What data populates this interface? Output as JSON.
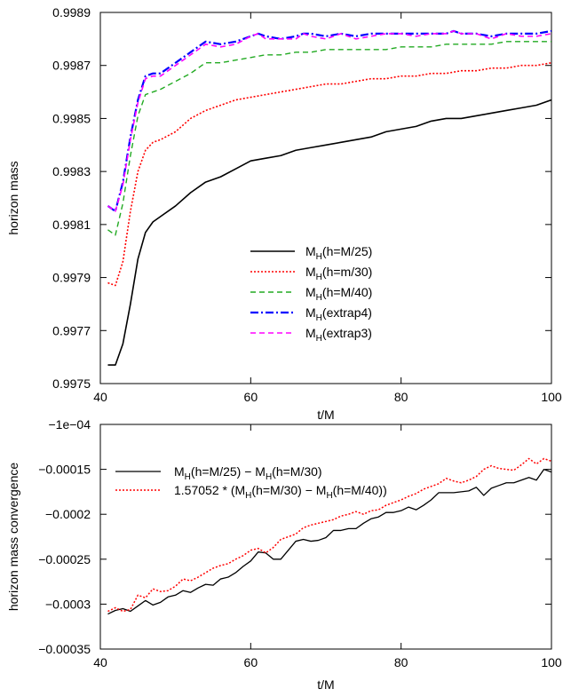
{
  "chart_data": [
    {
      "type": "line",
      "xlabel": "t/M",
      "ylabel": "horizon mass",
      "xlim": [
        40,
        100
      ],
      "ylim": [
        0.9975,
        0.9989
      ],
      "xticks": [
        {
          "v": 40,
          "label": "40"
        },
        {
          "v": 60,
          "label": "60"
        },
        {
          "v": 80,
          "label": "80"
        },
        {
          "v": 100,
          "label": "100"
        }
      ],
      "yticks": [
        {
          "v": 0.9975,
          "label": "0.9975"
        },
        {
          "v": 0.9977,
          "label": "0.9977"
        },
        {
          "v": 0.9979,
          "label": "0.9979"
        },
        {
          "v": 0.9981,
          "label": "0.9981"
        },
        {
          "v": 0.9983,
          "label": "0.9983"
        },
        {
          "v": 0.9985,
          "label": "0.9985"
        },
        {
          "v": 0.9987,
          "label": "0.9987"
        },
        {
          "v": 0.9989,
          "label": "0.9989"
        }
      ],
      "grid": false,
      "legend_position": "center-right",
      "series": [
        {
          "name_main": "M",
          "name_sub": "H",
          "name_rest": "(h=M/25)",
          "color": "#000000",
          "dash": "solid",
          "width": 1.6,
          "x": [
            41,
            42,
            43,
            44,
            45,
            46,
            47,
            48,
            50,
            52,
            54,
            56,
            58,
            60,
            62,
            64,
            66,
            68,
            70,
            72,
            74,
            76,
            78,
            80,
            82,
            84,
            86,
            88,
            90,
            92,
            94,
            96,
            98,
            100
          ],
          "y": [
            0.99757,
            0.99757,
            0.99765,
            0.9978,
            0.99797,
            0.99807,
            0.99811,
            0.99813,
            0.99817,
            0.99822,
            0.99826,
            0.99828,
            0.99831,
            0.99834,
            0.99835,
            0.99836,
            0.99838,
            0.99839,
            0.9984,
            0.99841,
            0.99842,
            0.99843,
            0.99845,
            0.99846,
            0.99847,
            0.99849,
            0.9985,
            0.9985,
            0.99851,
            0.99852,
            0.99853,
            0.99854,
            0.99855,
            0.99857
          ]
        },
        {
          "name_main": "M",
          "name_sub": "H",
          "name_rest": "(h=m/30)",
          "color": "#ff0000",
          "dash": "dotted",
          "width": 1.6,
          "x": [
            41,
            42,
            43,
            44,
            45,
            46,
            47,
            48,
            50,
            52,
            54,
            56,
            58,
            60,
            62,
            64,
            66,
            68,
            70,
            72,
            74,
            76,
            78,
            80,
            82,
            84,
            86,
            88,
            90,
            92,
            94,
            96,
            98,
            100
          ],
          "y": [
            0.99788,
            0.99787,
            0.99796,
            0.99815,
            0.9983,
            0.99838,
            0.99841,
            0.99842,
            0.99845,
            0.9985,
            0.99853,
            0.99855,
            0.99857,
            0.99858,
            0.99859,
            0.9986,
            0.99861,
            0.99862,
            0.99863,
            0.99863,
            0.99864,
            0.99865,
            0.99865,
            0.99866,
            0.99866,
            0.99867,
            0.99867,
            0.99868,
            0.99868,
            0.99869,
            0.99869,
            0.9987,
            0.9987,
            0.99871
          ]
        },
        {
          "name_main": "M",
          "name_sub": "H",
          "name_rest": "(h=M/40)",
          "color": "#22aa22",
          "dash": "dashed",
          "width": 1.4,
          "x": [
            41,
            42,
            43,
            44,
            45,
            46,
            47,
            48,
            50,
            52,
            54,
            56,
            58,
            60,
            62,
            64,
            66,
            68,
            70,
            72,
            74,
            76,
            78,
            80,
            82,
            84,
            86,
            88,
            90,
            92,
            94,
            96,
            98,
            100
          ],
          "y": [
            0.99808,
            0.99806,
            0.99818,
            0.99836,
            0.99851,
            0.99859,
            0.9986,
            0.99861,
            0.99864,
            0.99867,
            0.99871,
            0.99871,
            0.99872,
            0.99873,
            0.99874,
            0.99874,
            0.99875,
            0.99875,
            0.99876,
            0.99876,
            0.99876,
            0.99876,
            0.99876,
            0.99877,
            0.99877,
            0.99877,
            0.99878,
            0.99878,
            0.99878,
            0.99878,
            0.99879,
            0.99879,
            0.99879,
            0.99879
          ]
        },
        {
          "name_main": "M",
          "name_sub": "H",
          "name_rest": "(extrap4)",
          "color": "#0000ff",
          "dash": "dashdot",
          "width": 2.2,
          "x": [
            41,
            42,
            43,
            44,
            45,
            46,
            47,
            48,
            50,
            52,
            54,
            56,
            58,
            60,
            61,
            62,
            64,
            66,
            67,
            68,
            70,
            72,
            74,
            76,
            78,
            80,
            82,
            84,
            86,
            87,
            88,
            90,
            92,
            94,
            96,
            98,
            100
          ],
          "y": [
            0.99817,
            0.99815,
            0.99826,
            0.99843,
            0.99857,
            0.99866,
            0.99867,
            0.99867,
            0.99871,
            0.99875,
            0.99879,
            0.99878,
            0.99879,
            0.99881,
            0.99882,
            0.99881,
            0.9988,
            0.99881,
            0.99882,
            0.99882,
            0.99881,
            0.99882,
            0.99881,
            0.99882,
            0.99882,
            0.99882,
            0.99882,
            0.99882,
            0.99882,
            0.99883,
            0.99882,
            0.99882,
            0.99881,
            0.99882,
            0.99882,
            0.99882,
            0.99883
          ]
        },
        {
          "name_main": "M",
          "name_sub": "H",
          "name_rest": "(extrap3)",
          "color": "#ff00ff",
          "dash": "dashed",
          "width": 1.6,
          "x": [
            41,
            42,
            43,
            44,
            45,
            46,
            47,
            48,
            50,
            52,
            54,
            56,
            58,
            60,
            61,
            62,
            64,
            66,
            67,
            68,
            70,
            72,
            74,
            76,
            78,
            80,
            82,
            84,
            86,
            87,
            88,
            90,
            92,
            94,
            96,
            98,
            100
          ],
          "y": [
            0.99817,
            0.99815,
            0.99825,
            0.99842,
            0.99856,
            0.99865,
            0.99866,
            0.99866,
            0.9987,
            0.99874,
            0.99878,
            0.99877,
            0.99878,
            0.99881,
            0.99882,
            0.9988,
            0.9988,
            0.9988,
            0.99882,
            0.99881,
            0.9988,
            0.99882,
            0.9988,
            0.99881,
            0.99882,
            0.99882,
            0.99881,
            0.99882,
            0.99882,
            0.99883,
            0.99882,
            0.99882,
            0.9988,
            0.99882,
            0.99881,
            0.99881,
            0.99882
          ]
        }
      ]
    },
    {
      "type": "line",
      "xlabel": "t/M",
      "ylabel": "horizon mass convergence",
      "xlim": [
        40,
        100
      ],
      "ylim": [
        -0.00035,
        -0.0001
      ],
      "xticks": [
        {
          "v": 40,
          "label": "40"
        },
        {
          "v": 60,
          "label": "60"
        },
        {
          "v": 80,
          "label": "80"
        },
        {
          "v": 100,
          "label": "100"
        }
      ],
      "yticks": [
        {
          "v": -0.0001,
          "label": "−1e−04"
        },
        {
          "v": -0.00015,
          "label": "−0.00015"
        },
        {
          "v": -0.0002,
          "label": "−0.0002"
        },
        {
          "v": -0.00025,
          "label": "−0.00025"
        },
        {
          "v": -0.0003,
          "label": "−0.0003"
        },
        {
          "v": -0.00035,
          "label": "−0.00035"
        }
      ],
      "grid": false,
      "legend_position": "top-left",
      "series": [
        {
          "label_parts": [
            {
              "t": "M"
            },
            {
              "t": "H",
              "sub": true
            },
            {
              "t": "(h=M/25) − M"
            },
            {
              "t": "H",
              "sub": true
            },
            {
              "t": "(h=M/30)"
            }
          ],
          "color": "#000000",
          "dash": "solid",
          "width": 1.3,
          "x": [
            41,
            42,
            43,
            44,
            45,
            46,
            47,
            48,
            49,
            50,
            51,
            52,
            53,
            54,
            55,
            56,
            57,
            58,
            59,
            60,
            61,
            62,
            63,
            64,
            65,
            66,
            67,
            68,
            69,
            70,
            71,
            72,
            73,
            74,
            75,
            76,
            77,
            78,
            79,
            80,
            81,
            82,
            83,
            84,
            85,
            86,
            87,
            88,
            89,
            90,
            91,
            92,
            93,
            94,
            95,
            96,
            97,
            98,
            99,
            100
          ],
          "y": [
            -0.000311,
            -0.000307,
            -0.000305,
            -0.000308,
            -0.000302,
            -0.000296,
            -0.000301,
            -0.000298,
            -0.000292,
            -0.00029,
            -0.000285,
            -0.000287,
            -0.000282,
            -0.000278,
            -0.000279,
            -0.000272,
            -0.00027,
            -0.000265,
            -0.000258,
            -0.000252,
            -0.000242,
            -0.000243,
            -0.00025,
            -0.00025,
            -0.00024,
            -0.00023,
            -0.000228,
            -0.00023,
            -0.000229,
            -0.000226,
            -0.000218,
            -0.000218,
            -0.000216,
            -0.000216,
            -0.00021,
            -0.000205,
            -0.000203,
            -0.000198,
            -0.000198,
            -0.000196,
            -0.000192,
            -0.000195,
            -0.00019,
            -0.000184,
            -0.000176,
            -0.000176,
            -0.000176,
            -0.000175,
            -0.000174,
            -0.00017,
            -0.000179,
            -0.000171,
            -0.000168,
            -0.000165,
            -0.000165,
            -0.000162,
            -0.000159,
            -0.000162,
            -0.00015,
            -0.000153
          ]
        },
        {
          "label_parts": [
            {
              "t": "1.57052 * (M"
            },
            {
              "t": "H",
              "sub": true
            },
            {
              "t": "(h=M/30) − M"
            },
            {
              "t": "H",
              "sub": true
            },
            {
              "t": "(h=M/40))"
            }
          ],
          "color": "#ff0000",
          "dash": "dotted",
          "width": 1.5,
          "x": [
            41,
            42,
            43,
            44,
            45,
            46,
            47,
            48,
            49,
            50,
            51,
            52,
            53,
            54,
            55,
            56,
            57,
            58,
            59,
            60,
            61,
            62,
            63,
            64,
            65,
            66,
            67,
            68,
            69,
            70,
            71,
            72,
            73,
            74,
            75,
            76,
            77,
            78,
            79,
            80,
            81,
            82,
            83,
            84,
            85,
            86,
            87,
            88,
            89,
            90,
            91,
            92,
            93,
            94,
            95,
            96,
            97,
            98,
            99,
            100
          ],
          "y": [
            -0.000308,
            -0.000304,
            -0.000308,
            -0.000306,
            -0.00029,
            -0.000293,
            -0.000283,
            -0.000286,
            -0.000285,
            -0.00028,
            -0.000272,
            -0.000274,
            -0.00027,
            -0.000265,
            -0.00026,
            -0.000257,
            -0.000255,
            -0.00025,
            -0.000246,
            -0.00024,
            -0.000238,
            -0.000243,
            -0.000237,
            -0.000228,
            -0.000225,
            -0.000222,
            -0.000215,
            -0.000212,
            -0.00021,
            -0.000208,
            -0.000206,
            -0.000202,
            -0.0002,
            -0.000197,
            -0.0002,
            -0.000196,
            -0.000195,
            -0.00019,
            -0.000187,
            -0.000184,
            -0.00018,
            -0.000177,
            -0.000172,
            -0.000169,
            -0.000166,
            -0.00016,
            -0.000163,
            -0.000165,
            -0.000162,
            -0.000158,
            -0.00015,
            -0.000146,
            -0.000149,
            -0.00015,
            -0.000151,
            -0.000145,
            -0.000138,
            -0.000144,
            -0.000138,
            -0.000141
          ]
        }
      ]
    }
  ]
}
